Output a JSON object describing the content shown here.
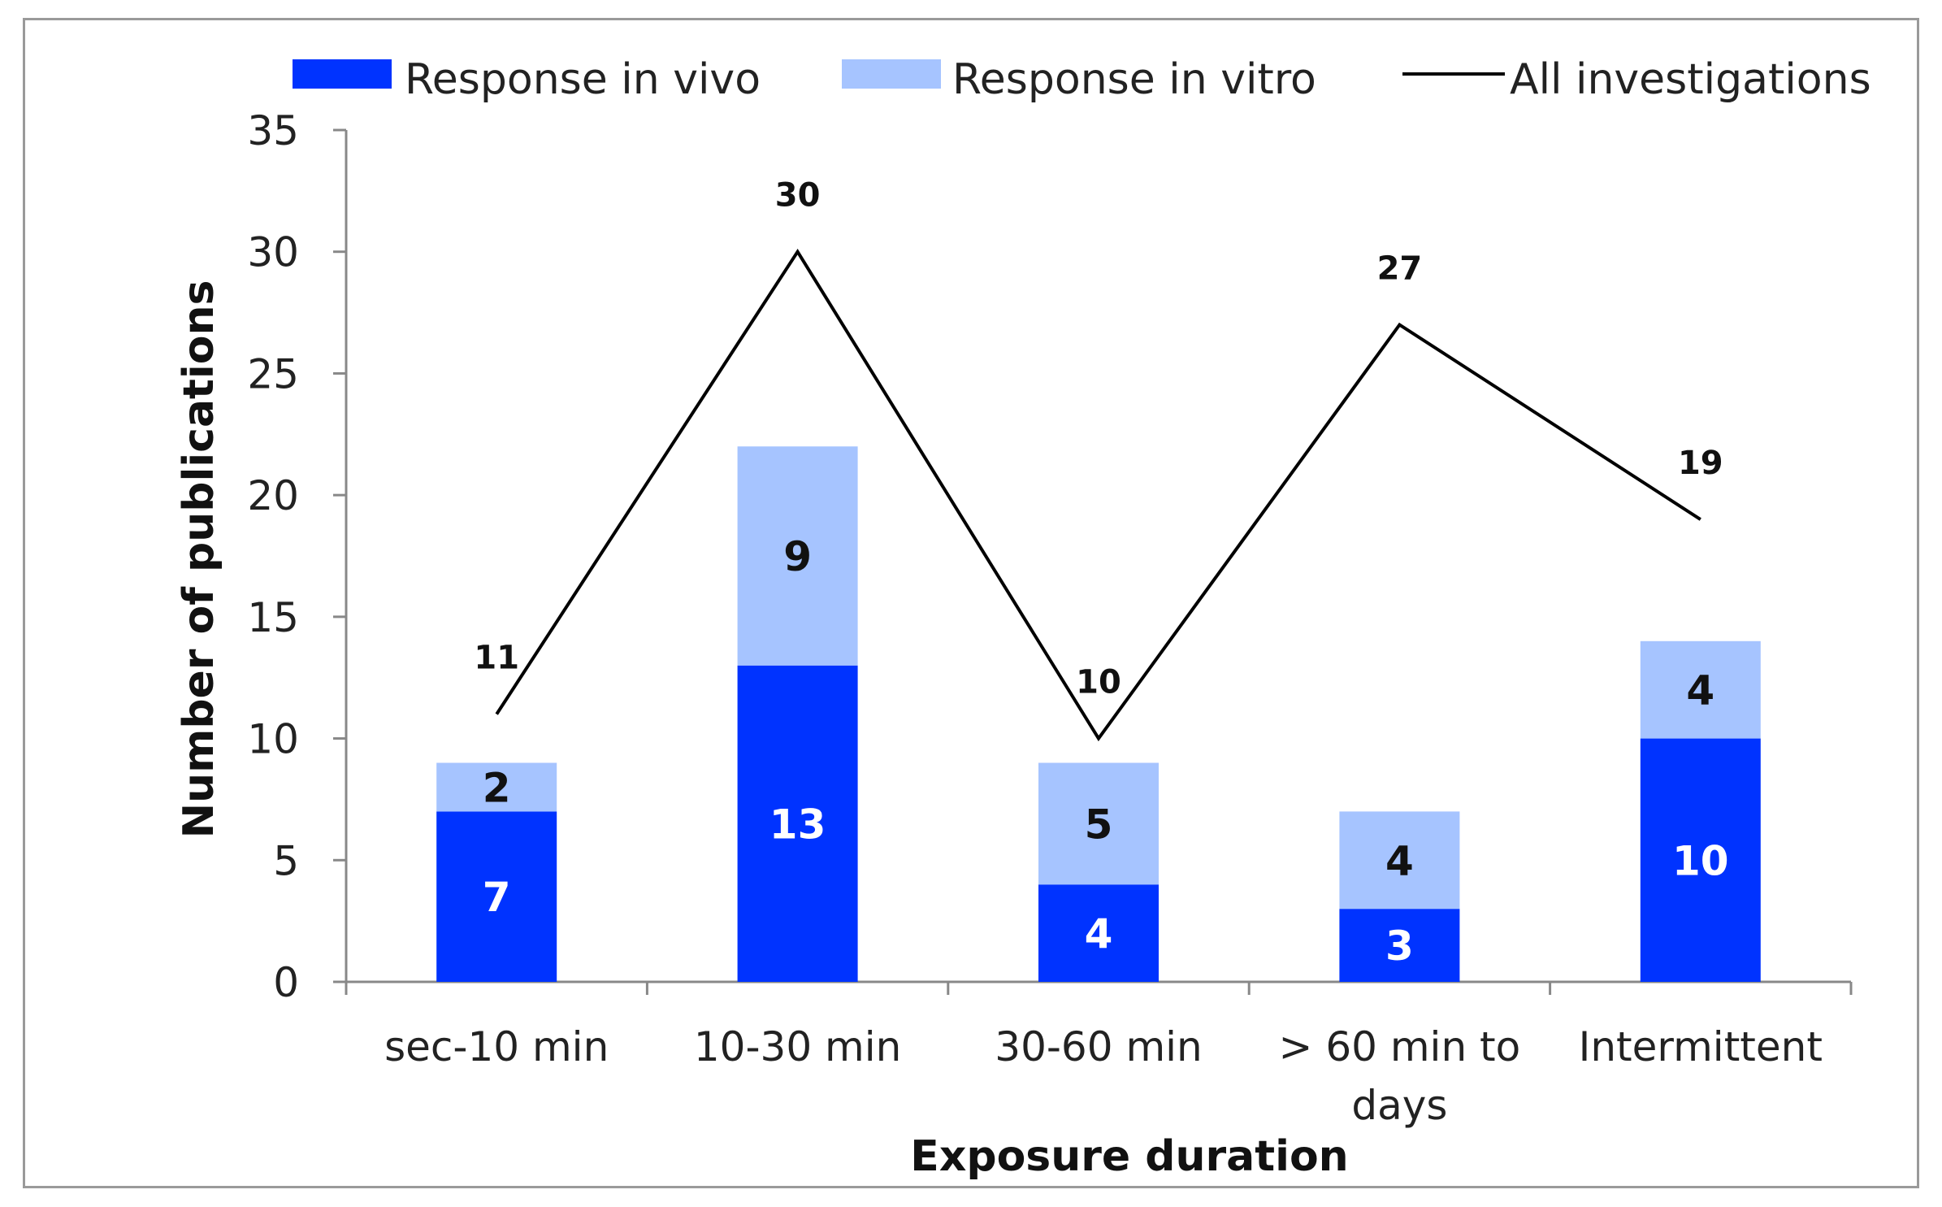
{
  "chart_data": {
    "type": "bar",
    "stacked": true,
    "xlabel": "Exposure duration",
    "ylabel": "Number of publications",
    "ylim": [
      0,
      35
    ],
    "yticks": [
      "0",
      "5",
      "10",
      "15",
      "20",
      "25",
      "30",
      "35"
    ],
    "categories": [
      [
        "sec-10 min"
      ],
      [
        "10-30 min"
      ],
      [
        "30-60 min"
      ],
      [
        "> 60 min to",
        "days"
      ],
      [
        "Intermittent"
      ]
    ],
    "series": [
      {
        "name": "Response in vivo",
        "type": "bar",
        "color": "#0033ff",
        "label_color": "#ffffff",
        "values": [
          7,
          13,
          4,
          3,
          10
        ]
      },
      {
        "name": "Response in vitro",
        "type": "bar",
        "color": "#a6c4ff",
        "label_color": "#111111",
        "values": [
          2,
          9,
          5,
          4,
          4
        ]
      },
      {
        "name": "All investigations",
        "type": "line",
        "color": "#000000",
        "values": [
          11,
          30,
          10,
          27,
          19
        ]
      }
    ],
    "legend_position": "top",
    "grid": false
  }
}
